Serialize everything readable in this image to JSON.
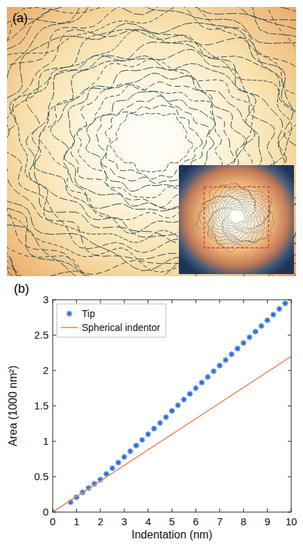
{
  "image": {
    "label": "(a)"
  },
  "chart_data": {
    "type": "scatter",
    "panel_label": "(b)",
    "x_label": "Indentation (nm)",
    "y_label": "Area (1000 nm²)",
    "xlim": [
      0,
      10
    ],
    "ylim": [
      0,
      3
    ],
    "xticks": [
      0,
      1,
      2,
      3,
      4,
      5,
      6,
      7,
      8,
      9,
      10
    ],
    "yticks": [
      0,
      0.5,
      1,
      1.5,
      2,
      2.5,
      3
    ],
    "grid": false,
    "legend": "top-left",
    "series": [
      {
        "name": "Tip",
        "type": "scatter",
        "marker": "star",
        "color": "#2b6ed8",
        "x": [
          0,
          0.75,
          1,
          1.25,
          1.5,
          1.75,
          2,
          2.25,
          2.5,
          2.75,
          3,
          3.25,
          3.5,
          3.75,
          4,
          4.25,
          4.5,
          4.75,
          5,
          5.25,
          5.5,
          5.75,
          6,
          6.25,
          6.5,
          6.75,
          7,
          7.25,
          7.5,
          7.75,
          8,
          8.25,
          8.5,
          8.75,
          9,
          9.25,
          9.5,
          9.75
        ],
        "values": [
          0,
          0.14,
          0.21,
          0.28,
          0.34,
          0.4,
          0.46,
          0.54,
          0.62,
          0.7,
          0.78,
          0.86,
          0.94,
          1.02,
          1.1,
          1.18,
          1.26,
          1.34,
          1.43,
          1.51,
          1.59,
          1.67,
          1.75,
          1.83,
          1.91,
          1.99,
          2.07,
          2.15,
          2.23,
          2.31,
          2.39,
          2.47,
          2.55,
          2.63,
          2.71,
          2.79,
          2.87,
          2.95
        ]
      },
      {
        "name": "Spherical indentor",
        "type": "line",
        "line_style": "solid",
        "color": "#f0825a",
        "x": [
          0,
          10
        ],
        "values": [
          0,
          2.2
        ]
      }
    ]
  }
}
